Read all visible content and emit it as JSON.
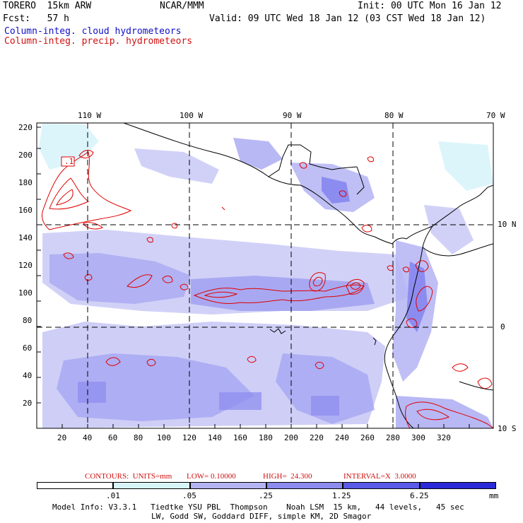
{
  "header": {
    "model": "TORERO  15km ARW",
    "org": "NCAR/MMM",
    "init": "Init: 00 UTC Mon 16 Jan 12",
    "fcst": "Fcst:   57 h",
    "valid": "Valid: 09 UTC Wed 18 Jan 12 (03 CST Wed 18 Jan 12)",
    "field_cloud": "Column-integ. cloud hydrometeors",
    "field_precip": "Column-integ. precip. hydrometeors"
  },
  "lon_labels": [
    "110 W",
    "100 W",
    "90 W",
    "80 W",
    "70 W"
  ],
  "lat_labels": [
    "10 N",
    "0",
    "10 S"
  ],
  "x_ticks": [
    "20",
    "40",
    "60",
    "80",
    "100",
    "120",
    "140",
    "160",
    "180",
    "200",
    "220",
    "240",
    "260",
    "280",
    "300",
    "320"
  ],
  "y_ticks": [
    "220",
    "200",
    "180",
    "160",
    "140",
    "120",
    "100",
    "80",
    "60",
    "40",
    "20"
  ],
  "contour_label": ".1",
  "contours_note": {
    "label": "CONTOURS:  UNITS=mm",
    "low": "LOW= 0.10000",
    "high": "HIGH=  24.300",
    "interval": "INTERVAL=X  3.0000"
  },
  "legend": {
    "values": [
      ".01",
      ".05",
      ".25",
      "1.25",
      "6.25"
    ],
    "units": "mm",
    "colors": [
      "#ffffff",
      "#d8f4fb",
      "#b4b4f4",
      "#8c8cf0",
      "#5a5ae8",
      "#2a2ad8"
    ]
  },
  "footer": {
    "line1": "Model Info: V3.3.1   Tiedtke YSU PBL  Thompson    Noah LSM  15 km,   44 levels,   45 sec",
    "line2": "LW, Godd SW, Goddard DIFF, simple KM, 2D Smagor"
  }
}
